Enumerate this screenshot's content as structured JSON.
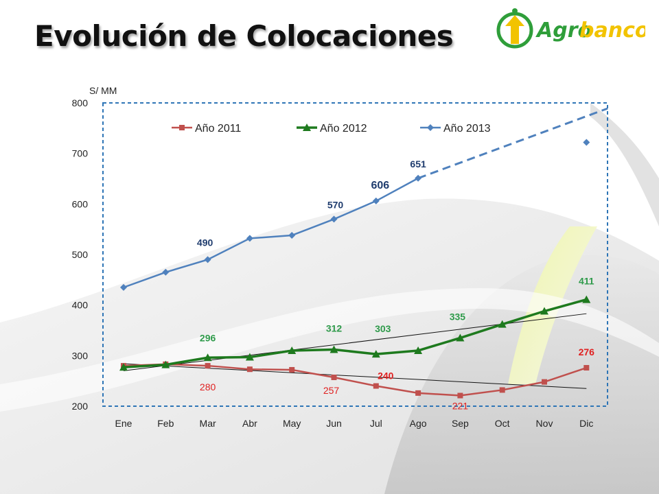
{
  "title": "Evolución de Colocaciones",
  "logo": {
    "text_agro": "Agro",
    "text_banco": "banco"
  },
  "colors": {
    "y2011": "#c0504d",
    "y2012": "#1e7a1e",
    "y2013": "#4f81bd",
    "label2011": "#e02020",
    "label2012": "#2e9a4a",
    "label2013": "#1f3c6e",
    "frame": "#2e75b6"
  },
  "chart_data": {
    "type": "line",
    "ylabel": "S/ MM",
    "ylim": [
      200,
      800
    ],
    "yticks": [
      "200",
      "300",
      "400",
      "500",
      "600",
      "700",
      "800"
    ],
    "categories": [
      "Ene",
      "Feb",
      "Mar",
      "Abr",
      "May",
      "Jun",
      "Jul",
      "Ago",
      "Sep",
      "Oct",
      "Nov",
      "Dic"
    ],
    "legend_position": "top",
    "series": [
      {
        "name": "Año 2011",
        "key": "y2011",
        "marker": "square",
        "values": [
          280,
          283,
          280,
          273,
          272,
          257,
          240,
          226,
          221,
          232,
          248,
          276
        ],
        "labels": [
          {
            "i": 2,
            "text": "280"
          },
          {
            "i": 5,
            "text": "257"
          },
          {
            "i": 6,
            "text": "240"
          },
          {
            "i": 8,
            "text": "221"
          },
          {
            "i": 11,
            "text": "276"
          }
        ]
      },
      {
        "name": "Año 2012",
        "key": "y2012",
        "marker": "triangle",
        "values": [
          277,
          282,
          296,
          297,
          310,
          312,
          303,
          310,
          335,
          362,
          388,
          411
        ],
        "labels": [
          {
            "i": 2,
            "text": "296"
          },
          {
            "i": 5,
            "text": "312"
          },
          {
            "i": 6,
            "text": "303"
          },
          {
            "i": 8,
            "text": "335"
          },
          {
            "i": 11,
            "text": "411"
          }
        ]
      },
      {
        "name": "Año 2013",
        "key": "y2013",
        "marker": "diamond",
        "values": [
          435,
          465,
          490,
          532,
          538,
          570,
          606,
          651,
          null,
          null,
          null,
          722
        ],
        "projection_end": 789,
        "labels": [
          {
            "i": 2,
            "text": "490"
          },
          {
            "i": 5,
            "text": "570"
          },
          {
            "i": 6,
            "text": "606"
          },
          {
            "i": 7,
            "text": "651"
          }
        ]
      }
    ],
    "trendlines": [
      {
        "key": "y2011",
        "start": 284,
        "end": 235
      },
      {
        "key": "y2012",
        "start": 270,
        "end": 383
      }
    ]
  }
}
